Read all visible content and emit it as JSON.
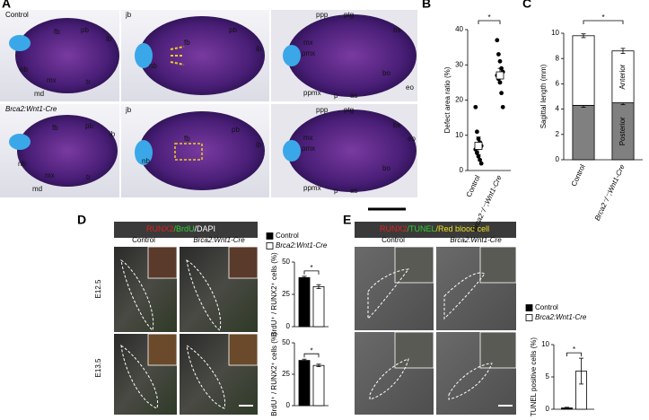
{
  "figure": {
    "panel_a": {
      "letter": "A",
      "row_labels": [
        "Control",
        "Brca2:Wnt1-Cre"
      ],
      "images": [
        [
          "nb",
          "fb",
          "pb",
          "ib",
          "mx",
          "md",
          "tr"
        ],
        [
          "jb",
          "nb",
          "fb",
          "pb",
          "ib"
        ],
        [
          "ppp",
          "ptg",
          "bs",
          "mx",
          "pmx",
          "bo",
          "ppmx",
          "eo",
          "p",
          "as"
        ],
        [
          "fb",
          "pb",
          "ib",
          "nb",
          "mx",
          "md",
          "tr"
        ],
        [
          "jb",
          "nb",
          "fb",
          "pb",
          "ib"
        ],
        [
          "ppp",
          "ptg",
          "bs",
          "eo",
          "mx",
          "pmx",
          "bo",
          "ppmx",
          "p",
          "as"
        ]
      ]
    },
    "panel_d": {
      "letter": "D",
      "stain": [
        "RUNX2",
        "/BrdU",
        "/DAPI"
      ],
      "columns": [
        "Control",
        "Brca2:Wnt1-Cre"
      ],
      "rows": [
        "E12.5",
        "E13.5"
      ]
    },
    "panel_e": {
      "letter": "E",
      "stain": [
        "RUNX2",
        "/TUNEL",
        "/Red blood cell"
      ],
      "columns": [
        "Control",
        "Brca2:Wnt1-Cre"
      ]
    }
  },
  "chart_data": [
    {
      "type": "scatter",
      "letter": "B",
      "ylabel": "Defect area ratio (%)",
      "categories": [
        "Control",
        "Brca2⁻/⁻;Wnt1-Cre"
      ],
      "points": [
        [
          18,
          11,
          9,
          8,
          7,
          6,
          5,
          4,
          3,
          2
        ],
        [
          37,
          33,
          31,
          29,
          28,
          27,
          26,
          25,
          22,
          18
        ]
      ],
      "means": [
        7,
        27
      ],
      "errors": [
        2.5,
        2
      ],
      "ylim": [
        0,
        40
      ],
      "yticks": [
        0,
        10,
        20,
        30,
        40
      ],
      "significance": "*"
    },
    {
      "type": "bar",
      "letter": "C",
      "ylabel": "Sagittal length (mm)",
      "categories": [
        "Control",
        "Brca2⁻/⁻;Wnt1-Cre"
      ],
      "stacked": true,
      "series": [
        {
          "name": "Posterior",
          "color": "#808080",
          "values": [
            4.3,
            4.5
          ],
          "errors": [
            0.15,
            0.15
          ]
        },
        {
          "name": "Anterior",
          "color": "#ffffff",
          "values": [
            5.5,
            4.1
          ],
          "errors": [
            0.15,
            0.2
          ]
        }
      ],
      "ylim": [
        0,
        10
      ],
      "yticks": [
        0,
        2,
        4,
        6,
        8,
        10
      ],
      "significance": "*"
    },
    {
      "type": "bar",
      "ylabel": "BrdU⁺ / RUNX2⁺ cells (%)",
      "series": [
        {
          "name": "Control",
          "color": "#000000",
          "values": [
            38
          ],
          "errors": [
            1
          ]
        },
        {
          "name": "Brca2:Wnt1-Cre",
          "color": "#ffffff",
          "values": [
            31
          ],
          "errors": [
            1.5
          ]
        }
      ],
      "ylim": [
        0,
        50
      ],
      "yticks": [
        0,
        25,
        50
      ],
      "significance": "*"
    },
    {
      "type": "bar",
      "ylabel": "BrdU⁺ / RUNX2⁺ cells (%)",
      "series": [
        {
          "color": "#000000",
          "values": [
            36
          ],
          "errors": [
            1
          ]
        },
        {
          "color": "#ffffff",
          "values": [
            32
          ],
          "errors": [
            1
          ]
        }
      ],
      "ylim": [
        0,
        50
      ],
      "yticks": [
        0,
        25,
        50
      ],
      "significance": "*"
    },
    {
      "type": "bar",
      "ylabel": "TUNEL positive cells (%)",
      "series": [
        {
          "name": "Control",
          "color": "#000000",
          "values": [
            0.2
          ],
          "errors": [
            0.1
          ]
        },
        {
          "name": "Brca2:Wnt1-Cre",
          "color": "#ffffff",
          "values": [
            5.9
          ],
          "errors": [
            2
          ]
        }
      ],
      "ylim": [
        0,
        10
      ],
      "yticks": [
        0,
        5,
        10
      ],
      "significance": "*"
    }
  ]
}
